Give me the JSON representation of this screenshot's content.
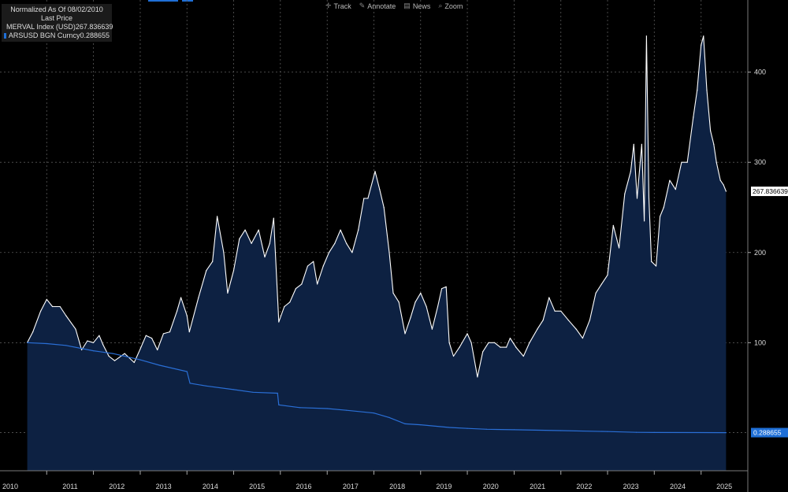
{
  "legend": {
    "header_line1": "Normalized As Of 08/02/2010",
    "header_line2": "Last Price",
    "series": [
      {
        "label": "MERVAL Index (USD)",
        "value": "267.836639",
        "color": "#ffffff"
      },
      {
        "label": "ARSUSD BGN Curncy",
        "value": "0.288655",
        "color": "#1f6fd6"
      }
    ]
  },
  "toolbar": {
    "track": "Track",
    "annotate": "Annotate",
    "news": "News",
    "zoom": "Zoom",
    "icons": [
      "crosshair-icon",
      "pencil-icon",
      "news-icon",
      "magnifier-icon"
    ]
  },
  "colors": {
    "background": "#000000",
    "area_fill": "#0d2142",
    "merval_line": "#ffffff",
    "arsusd_line": "#2a6fd6",
    "grid": "#5a5a5a"
  },
  "chart_data": {
    "type": "line",
    "title": "",
    "xlabel": "",
    "ylabel": "",
    "ylim": [
      -42,
      480
    ],
    "yticks": [
      100,
      200,
      300,
      400
    ],
    "xticks": [
      "2010",
      "2011",
      "2012",
      "2013",
      "2014",
      "2015",
      "2016",
      "2017",
      "2018",
      "2019",
      "2020",
      "2021",
      "2022",
      "2023",
      "2024",
      "2025"
    ],
    "grid": true,
    "legend_position": "top-left",
    "last_value_labels": [
      "267.836639",
      "0.288655"
    ],
    "series": [
      {
        "name": "MERVAL Index (USD)",
        "style": "area",
        "points": [
          [
            "2010-08-02",
            100
          ],
          [
            "2010-09-15",
            112
          ],
          [
            "2010-11-15",
            135
          ],
          [
            "2011-01-01",
            148
          ],
          [
            "2011-02-15",
            140
          ],
          [
            "2011-04-15",
            140
          ],
          [
            "2011-06-01",
            130
          ],
          [
            "2011-08-15",
            115
          ],
          [
            "2011-10-01",
            92
          ],
          [
            "2011-11-15",
            102
          ],
          [
            "2012-01-01",
            100
          ],
          [
            "2012-02-15",
            108
          ],
          [
            "2012-03-15",
            98
          ],
          [
            "2012-05-01",
            85
          ],
          [
            "2012-06-15",
            80
          ],
          [
            "2012-09-01",
            88
          ],
          [
            "2012-11-15",
            78
          ],
          [
            "2013-01-01",
            93
          ],
          [
            "2013-02-15",
            108
          ],
          [
            "2013-04-01",
            105
          ],
          [
            "2013-05-15",
            92
          ],
          [
            "2013-07-01",
            110
          ],
          [
            "2013-08-20",
            112
          ],
          [
            "2013-10-15",
            135
          ],
          [
            "2013-11-15",
            150
          ],
          [
            "2014-01-01",
            130
          ],
          [
            "2014-01-20",
            112
          ],
          [
            "2014-04-01",
            150
          ],
          [
            "2014-06-01",
            180
          ],
          [
            "2014-07-20",
            190
          ],
          [
            "2014-08-25",
            240
          ],
          [
            "2014-10-15",
            200
          ],
          [
            "2014-11-15",
            155
          ],
          [
            "2015-01-01",
            180
          ],
          [
            "2015-02-15",
            215
          ],
          [
            "2015-04-01",
            225
          ],
          [
            "2015-05-20",
            210
          ],
          [
            "2015-07-15",
            225
          ],
          [
            "2015-09-01",
            195
          ],
          [
            "2015-10-10",
            210
          ],
          [
            "2015-11-10",
            238
          ],
          [
            "2015-12-20",
            123
          ],
          [
            "2016-02-01",
            140
          ],
          [
            "2016-03-15",
            145
          ],
          [
            "2016-05-01",
            160
          ],
          [
            "2016-06-15",
            165
          ],
          [
            "2016-08-01",
            185
          ],
          [
            "2016-09-15",
            190
          ],
          [
            "2016-10-15",
            165
          ],
          [
            "2016-12-01",
            185
          ],
          [
            "2017-01-15",
            200
          ],
          [
            "2017-03-01",
            210
          ],
          [
            "2017-04-15",
            225
          ],
          [
            "2017-06-01",
            210
          ],
          [
            "2017-07-15",
            200
          ],
          [
            "2017-09-01",
            225
          ],
          [
            "2017-10-15",
            260
          ],
          [
            "2017-11-15",
            260
          ],
          [
            "2018-01-10",
            290
          ],
          [
            "2018-02-15",
            270
          ],
          [
            "2018-03-20",
            250
          ],
          [
            "2018-05-01",
            200
          ],
          [
            "2018-06-01",
            155
          ],
          [
            "2018-07-15",
            145
          ],
          [
            "2018-09-01",
            110
          ],
          [
            "2018-10-15",
            128
          ],
          [
            "2018-11-20",
            145
          ],
          [
            "2019-01-01",
            155
          ],
          [
            "2019-02-15",
            140
          ],
          [
            "2019-04-01",
            115
          ],
          [
            "2019-05-15",
            140
          ],
          [
            "2019-06-15",
            160
          ],
          [
            "2019-07-20",
            162
          ],
          [
            "2019-08-13",
            100
          ],
          [
            "2019-09-15",
            85
          ],
          [
            "2019-11-01",
            95
          ],
          [
            "2020-01-01",
            110
          ],
          [
            "2020-02-01",
            100
          ],
          [
            "2020-03-20",
            62
          ],
          [
            "2020-05-01",
            90
          ],
          [
            "2020-06-15",
            100
          ],
          [
            "2020-08-01",
            100
          ],
          [
            "2020-09-15",
            95
          ],
          [
            "2020-11-01",
            95
          ],
          [
            "2020-12-01",
            105
          ],
          [
            "2021-01-15",
            95
          ],
          [
            "2021-03-15",
            85
          ],
          [
            "2021-05-01",
            100
          ],
          [
            "2021-07-01",
            115
          ],
          [
            "2021-08-15",
            125
          ],
          [
            "2021-10-01",
            150
          ],
          [
            "2021-11-15",
            135
          ],
          [
            "2022-01-01",
            135
          ],
          [
            "2022-03-01",
            125
          ],
          [
            "2022-05-01",
            115
          ],
          [
            "2022-06-20",
            105
          ],
          [
            "2022-08-15",
            125
          ],
          [
            "2022-10-01",
            155
          ],
          [
            "2022-11-15",
            165
          ],
          [
            "2023-01-01",
            175
          ],
          [
            "2023-02-15",
            230
          ],
          [
            "2023-04-01",
            205
          ],
          [
            "2023-05-15",
            265
          ],
          [
            "2023-07-01",
            290
          ],
          [
            "2023-07-25",
            320
          ],
          [
            "2023-08-20",
            260
          ],
          [
            "2023-09-25",
            320
          ],
          [
            "2023-10-15",
            235
          ],
          [
            "2023-11-01",
            440
          ],
          [
            "2023-11-20",
            260
          ],
          [
            "2023-12-10",
            190
          ],
          [
            "2024-01-15",
            185
          ],
          [
            "2024-02-15",
            240
          ],
          [
            "2024-03-15",
            250
          ],
          [
            "2024-05-01",
            280
          ],
          [
            "2024-06-15",
            270
          ],
          [
            "2024-08-01",
            300
          ],
          [
            "2024-09-15",
            300
          ],
          [
            "2024-11-01",
            350
          ],
          [
            "2024-12-01",
            380
          ],
          [
            "2025-01-01",
            430
          ],
          [
            "2025-01-20",
            440
          ],
          [
            "2025-02-15",
            380
          ],
          [
            "2025-03-15",
            335
          ],
          [
            "2025-04-10",
            320
          ],
          [
            "2025-05-01",
            300
          ],
          [
            "2025-06-01",
            280
          ],
          [
            "2025-06-25",
            275
          ],
          [
            "2025-07-15",
            267.84
          ]
        ]
      },
      {
        "name": "ARSUSD BGN Curncy",
        "style": "line",
        "points": [
          [
            "2010-08-02",
            100
          ],
          [
            "2011-01-01",
            99
          ],
          [
            "2011-06-01",
            97
          ],
          [
            "2012-01-01",
            91
          ],
          [
            "2012-06-01",
            88
          ],
          [
            "2013-01-01",
            81
          ],
          [
            "2013-06-01",
            75
          ],
          [
            "2014-01-01",
            68
          ],
          [
            "2014-01-25",
            55
          ],
          [
            "2014-06-01",
            52
          ],
          [
            "2015-01-01",
            48
          ],
          [
            "2015-06-01",
            45
          ],
          [
            "2015-12-10",
            44
          ],
          [
            "2015-12-20",
            31
          ],
          [
            "2016-06-01",
            28
          ],
          [
            "2017-01-01",
            27
          ],
          [
            "2017-06-01",
            25
          ],
          [
            "2018-01-01",
            22
          ],
          [
            "2018-05-01",
            17
          ],
          [
            "2018-09-01",
            10
          ],
          [
            "2019-01-01",
            9
          ],
          [
            "2019-08-13",
            6
          ],
          [
            "2020-01-01",
            5
          ],
          [
            "2020-06-01",
            4
          ],
          [
            "2021-01-01",
            3.5
          ],
          [
            "2022-01-01",
            2.5
          ],
          [
            "2023-01-01",
            1.5
          ],
          [
            "2023-08-14",
            0.6
          ],
          [
            "2024-01-01",
            0.4
          ],
          [
            "2025-07-15",
            0.29
          ]
        ]
      }
    ]
  }
}
